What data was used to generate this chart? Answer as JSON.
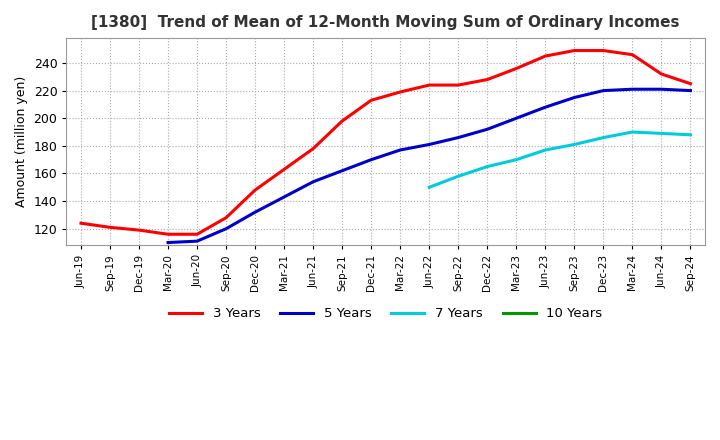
{
  "title": "[1380]  Trend of Mean of 12-Month Moving Sum of Ordinary Incomes",
  "ylabel": "Amount (million yen)",
  "ylim": [
    108,
    258
  ],
  "yticks": [
    120,
    140,
    160,
    180,
    200,
    220,
    240
  ],
  "background_color": "#ffffff",
  "legend_labels": [
    "3 Years",
    "5 Years",
    "7 Years",
    "10 Years"
  ],
  "legend_colors": [
    "#ff0000",
    "#0000cc",
    "#00ccdd",
    "#009900"
  ],
  "x_labels": [
    "Jun-19",
    "Sep-19",
    "Dec-19",
    "Mar-20",
    "Jun-20",
    "Sep-20",
    "Dec-20",
    "Mar-21",
    "Jun-21",
    "Sep-21",
    "Dec-21",
    "Mar-22",
    "Jun-22",
    "Sep-22",
    "Dec-22",
    "Mar-23",
    "Jun-23",
    "Sep-23",
    "Dec-23",
    "Mar-24",
    "Jun-24",
    "Sep-24"
  ],
  "series_3y_x": [
    0,
    1,
    2,
    3,
    4,
    5,
    6,
    7,
    8,
    9,
    10,
    11,
    12,
    13,
    14,
    15,
    16,
    17,
    18,
    19,
    20,
    21
  ],
  "series_3y_v": [
    124,
    121,
    119,
    116,
    116,
    128,
    148,
    163,
    178,
    198,
    213,
    219,
    224,
    224,
    228,
    236,
    245,
    249,
    249,
    246,
    232,
    225
  ],
  "series_5y_x": [
    3,
    4,
    5,
    6,
    7,
    8,
    9,
    10,
    11,
    12,
    13,
    14,
    15,
    16,
    17,
    18,
    19,
    20,
    21
  ],
  "series_5y_v": [
    110,
    111,
    120,
    132,
    143,
    154,
    162,
    170,
    177,
    181,
    186,
    192,
    200,
    208,
    215,
    220,
    221,
    221,
    220
  ],
  "series_7y_x": [
    12,
    13,
    14,
    15,
    16,
    17,
    18,
    19,
    20,
    21
  ],
  "series_7y_v": [
    150,
    158,
    165,
    170,
    177,
    181,
    186,
    190,
    189,
    188
  ],
  "series_10y_x": [],
  "series_10y_v": []
}
